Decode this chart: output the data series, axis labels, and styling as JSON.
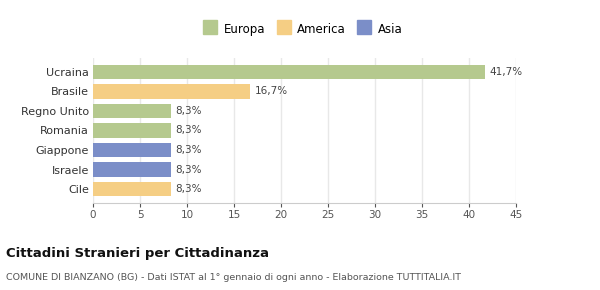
{
  "categories": [
    "Ucraina",
    "Brasile",
    "Regno Unito",
    "Romania",
    "Giappone",
    "Israele",
    "Cile"
  ],
  "values": [
    41.7,
    16.7,
    8.3,
    8.3,
    8.3,
    8.3,
    8.3
  ],
  "labels": [
    "41,7%",
    "16,7%",
    "8,3%",
    "8,3%",
    "8,3%",
    "8,3%",
    "8,3%"
  ],
  "colors": [
    "#b5c98e",
    "#f5ce84",
    "#b5c98e",
    "#b5c98e",
    "#7b8ec8",
    "#7b8ec8",
    "#f5ce84"
  ],
  "legend": [
    {
      "label": "Europa",
      "color": "#b5c98e"
    },
    {
      "label": "America",
      "color": "#f5ce84"
    },
    {
      "label": "Asia",
      "color": "#7b8ec8"
    }
  ],
  "xlim": [
    0,
    45
  ],
  "xticks": [
    0,
    5,
    10,
    15,
    20,
    25,
    30,
    35,
    40,
    45
  ],
  "title": "Cittadini Stranieri per Cittadinanza",
  "subtitle": "COMUNE DI BIANZANO (BG) - Dati ISTAT al 1° gennaio di ogni anno - Elaborazione TUTTITALIA.IT",
  "background_color": "#ffffff",
  "grid_color": "#e8e8e8",
  "bar_height": 0.75
}
